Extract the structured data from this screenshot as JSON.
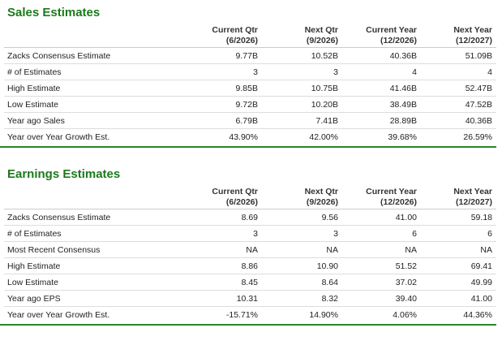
{
  "sales": {
    "title": "Sales Estimates",
    "headers": [
      {
        "line1": "Current Qtr",
        "line2": "(6/2026)"
      },
      {
        "line1": "Next Qtr",
        "line2": "(9/2026)"
      },
      {
        "line1": "Current Year",
        "line2": "(12/2026)"
      },
      {
        "line1": "Next Year",
        "line2": "(12/2027)"
      }
    ],
    "rows": [
      {
        "label": "Zacks Consensus Estimate",
        "values": [
          "9.77B",
          "10.52B",
          "40.36B",
          "51.09B"
        ]
      },
      {
        "label": "# of Estimates",
        "values": [
          "3",
          "3",
          "4",
          "4"
        ]
      },
      {
        "label": "High Estimate",
        "values": [
          "9.85B",
          "10.75B",
          "41.46B",
          "52.47B"
        ]
      },
      {
        "label": "Low Estimate",
        "values": [
          "9.72B",
          "10.20B",
          "38.49B",
          "47.52B"
        ]
      },
      {
        "label": "Year ago Sales",
        "values": [
          "6.79B",
          "7.41B",
          "28.89B",
          "40.36B"
        ]
      },
      {
        "label": "Year over Year Growth Est.",
        "values": [
          "43.90%",
          "42.00%",
          "39.68%",
          "26.59%"
        ]
      }
    ]
  },
  "earnings": {
    "title": "Earnings Estimates",
    "headers": [
      {
        "line1": "Current Qtr",
        "line2": "(6/2026)"
      },
      {
        "line1": "Next Qtr",
        "line2": "(9/2026)"
      },
      {
        "line1": "Current Year",
        "line2": "(12/2026)"
      },
      {
        "line1": "Next Year",
        "line2": "(12/2027)"
      }
    ],
    "rows": [
      {
        "label": "Zacks Consensus Estimate",
        "values": [
          "8.69",
          "9.56",
          "41.00",
          "59.18"
        ]
      },
      {
        "label": "# of Estimates",
        "values": [
          "3",
          "3",
          "6",
          "6"
        ]
      },
      {
        "label": "Most Recent Consensus",
        "values": [
          "NA",
          "NA",
          "NA",
          "NA"
        ]
      },
      {
        "label": "High Estimate",
        "values": [
          "8.86",
          "10.90",
          "51.52",
          "69.41"
        ]
      },
      {
        "label": "Low Estimate",
        "values": [
          "8.45",
          "8.64",
          "37.02",
          "49.99"
        ]
      },
      {
        "label": "Year ago EPS",
        "values": [
          "10.31",
          "8.32",
          "39.40",
          "41.00"
        ]
      },
      {
        "label": "Year over Year Growth Est.",
        "values": [
          "-15.71%",
          "14.90%",
          "4.06%",
          "44.36%"
        ]
      }
    ]
  },
  "colors": {
    "accent": "#1b7a1b",
    "rule": "#27882a"
  }
}
